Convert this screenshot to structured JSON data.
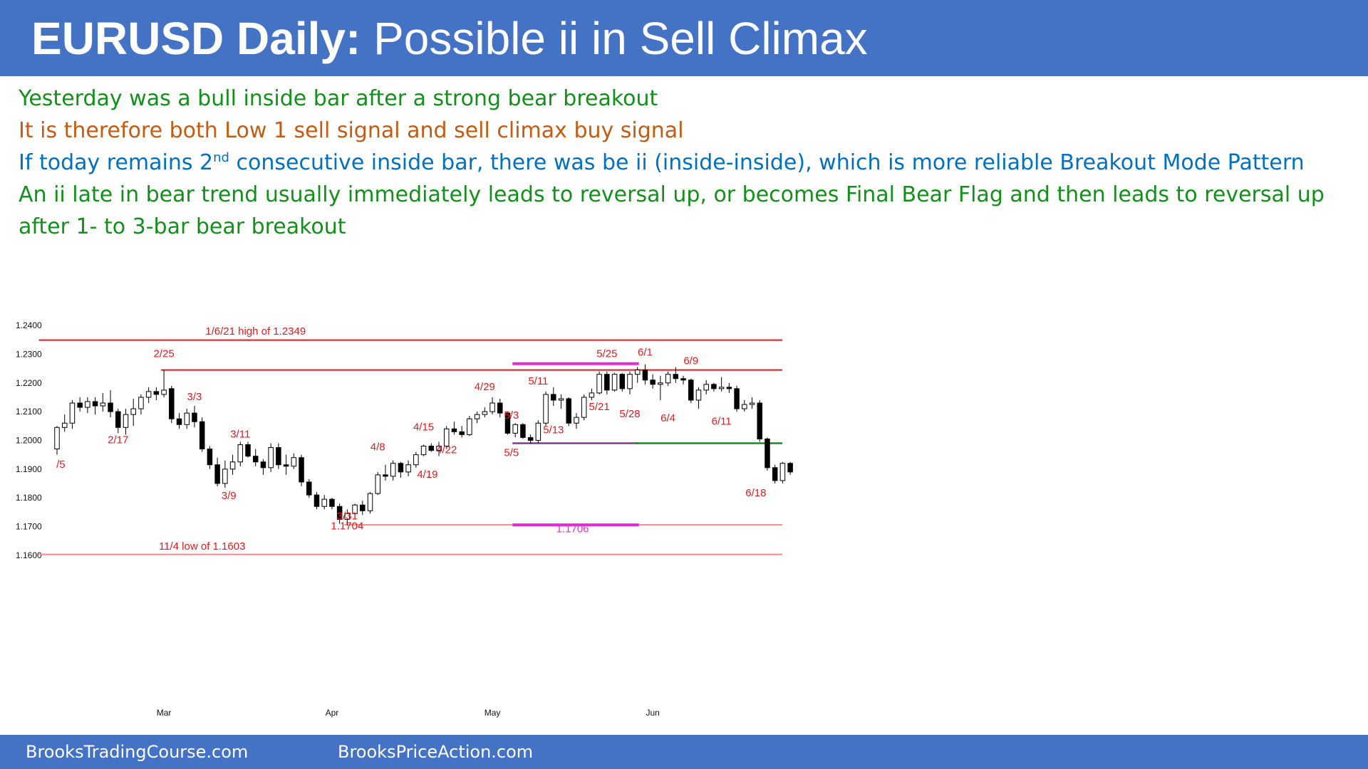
{
  "header": {
    "title_bold": "EURUSD Daily:",
    "title_rest": "Possible ii in Sell Climax"
  },
  "notes": [
    {
      "text": "Yesterday was a bull inside bar after a strong bear breakout",
      "color": "#12901a"
    },
    {
      "text": "It is therefore both Low 1 sell signal and sell climax buy signal",
      "color": "#c55a11"
    },
    {
      "text_before": "If today remains 2",
      "sup": "nd",
      "text_after": " consecutive inside bar, there was be ii (inside-inside), which is more reliable Breakout Mode Pattern",
      "color": "#0070c0"
    },
    {
      "text": "An ii late in bear trend usually immediately leads to reversal up, or becomes Final Bear Flag and then leads to reversal up after  1- to 3-bar bear breakout",
      "color": "#12901a"
    }
  ],
  "footer": {
    "left_link": "BrooksTradingCourse.com",
    "right_link": "BrooksPriceAction.com"
  },
  "chart_data": {
    "type": "candlestick",
    "title": "",
    "xlabel": "",
    "ylabel": "",
    "ylim": [
      1.155,
      1.2425
    ],
    "y_ticks": [
      "1.1600",
      "1.1700",
      "1.1800",
      "1.1900",
      "1.2000",
      "1.2100",
      "1.2200",
      "1.2300",
      "1.2400"
    ],
    "x_months": [
      {
        "label": "Mar",
        "index": 14
      },
      {
        "label": "Apr",
        "index": 36
      },
      {
        "label": "May",
        "index": 57
      },
      {
        "label": "Jun",
        "index": 78
      }
    ],
    "candles": [
      {
        "o": 1.197,
        "h": 1.205,
        "l": 1.195,
        "c": 1.2045
      },
      {
        "o": 1.2045,
        "h": 1.209,
        "l": 1.203,
        "c": 1.206
      },
      {
        "o": 1.206,
        "h": 1.214,
        "l": 1.204,
        "c": 1.213
      },
      {
        "o": 1.213,
        "h": 1.215,
        "l": 1.21,
        "c": 1.2115
      },
      {
        "o": 1.2115,
        "h": 1.215,
        "l": 1.2095,
        "c": 1.2135
      },
      {
        "o": 1.2135,
        "h": 1.215,
        "l": 1.209,
        "c": 1.212
      },
      {
        "o": 1.212,
        "h": 1.2165,
        "l": 1.21,
        "c": 1.213
      },
      {
        "o": 1.213,
        "h": 1.2175,
        "l": 1.208,
        "c": 1.21
      },
      {
        "o": 1.21,
        "h": 1.211,
        "l": 1.2025,
        "c": 1.2045
      },
      {
        "o": 1.2045,
        "h": 1.211,
        "l": 1.202,
        "c": 1.209
      },
      {
        "o": 1.209,
        "h": 1.2145,
        "l": 1.205,
        "c": 1.211
      },
      {
        "o": 1.211,
        "h": 1.216,
        "l": 1.209,
        "c": 1.215
      },
      {
        "o": 1.215,
        "h": 1.2185,
        "l": 1.213,
        "c": 1.217
      },
      {
        "o": 1.217,
        "h": 1.2185,
        "l": 1.214,
        "c": 1.216
      },
      {
        "o": 1.216,
        "h": 1.2245,
        "l": 1.215,
        "c": 1.2175
      },
      {
        "o": 1.218,
        "h": 1.219,
        "l": 1.206,
        "c": 1.2075
      },
      {
        "o": 1.2075,
        "h": 1.2095,
        "l": 1.204,
        "c": 1.2055
      },
      {
        "o": 1.2055,
        "h": 1.211,
        "l": 1.204,
        "c": 1.2095
      },
      {
        "o": 1.2095,
        "h": 1.212,
        "l": 1.2045,
        "c": 1.2065
      },
      {
        "o": 1.2065,
        "h": 1.208,
        "l": 1.196,
        "c": 1.197
      },
      {
        "o": 1.197,
        "h": 1.198,
        "l": 1.19,
        "c": 1.1915
      },
      {
        "o": 1.1915,
        "h": 1.194,
        "l": 1.184,
        "c": 1.185
      },
      {
        "o": 1.185,
        "h": 1.193,
        "l": 1.1835,
        "c": 1.19
      },
      {
        "o": 1.19,
        "h": 1.195,
        "l": 1.188,
        "c": 1.1925
      },
      {
        "o": 1.1925,
        "h": 1.1995,
        "l": 1.191,
        "c": 1.1985
      },
      {
        "o": 1.1985,
        "h": 1.1995,
        "l": 1.194,
        "c": 1.1945
      },
      {
        "o": 1.1945,
        "h": 1.197,
        "l": 1.191,
        "c": 1.1925
      },
      {
        "o": 1.1925,
        "h": 1.1935,
        "l": 1.188,
        "c": 1.1905
      },
      {
        "o": 1.1905,
        "h": 1.199,
        "l": 1.189,
        "c": 1.1975
      },
      {
        "o": 1.1975,
        "h": 1.199,
        "l": 1.19,
        "c": 1.1915
      },
      {
        "o": 1.1915,
        "h": 1.195,
        "l": 1.188,
        "c": 1.191
      },
      {
        "o": 1.191,
        "h": 1.1955,
        "l": 1.19,
        "c": 1.194
      },
      {
        "o": 1.194,
        "h": 1.195,
        "l": 1.184,
        "c": 1.1855
      },
      {
        "o": 1.1855,
        "h": 1.1865,
        "l": 1.18,
        "c": 1.181
      },
      {
        "o": 1.181,
        "h": 1.182,
        "l": 1.176,
        "c": 1.177
      },
      {
        "o": 1.177,
        "h": 1.181,
        "l": 1.176,
        "c": 1.1795
      },
      {
        "o": 1.1795,
        "h": 1.18,
        "l": 1.176,
        "c": 1.177
      },
      {
        "o": 1.177,
        "h": 1.178,
        "l": 1.171,
        "c": 1.1725
      },
      {
        "o": 1.1725,
        "h": 1.176,
        "l": 1.1704,
        "c": 1.1745
      },
      {
        "o": 1.1745,
        "h": 1.178,
        "l": 1.173,
        "c": 1.1775
      },
      {
        "o": 1.1775,
        "h": 1.179,
        "l": 1.174,
        "c": 1.1755
      },
      {
        "o": 1.1755,
        "h": 1.182,
        "l": 1.1745,
        "c": 1.1815
      },
      {
        "o": 1.1815,
        "h": 1.189,
        "l": 1.181,
        "c": 1.188
      },
      {
        "o": 1.188,
        "h": 1.1915,
        "l": 1.186,
        "c": 1.1875
      },
      {
        "o": 1.1875,
        "h": 1.193,
        "l": 1.186,
        "c": 1.192
      },
      {
        "o": 1.192,
        "h": 1.1925,
        "l": 1.187,
        "c": 1.189
      },
      {
        "o": 1.189,
        "h": 1.193,
        "l": 1.1875,
        "c": 1.1915
      },
      {
        "o": 1.1915,
        "h": 1.196,
        "l": 1.1905,
        "c": 1.195
      },
      {
        "o": 1.195,
        "h": 1.1985,
        "l": 1.1945,
        "c": 1.198
      },
      {
        "o": 1.198,
        "h": 1.199,
        "l": 1.196,
        "c": 1.1965
      },
      {
        "o": 1.1965,
        "h": 1.1995,
        "l": 1.1945,
        "c": 1.198
      },
      {
        "o": 1.198,
        "h": 1.205,
        "l": 1.197,
        "c": 1.204
      },
      {
        "o": 1.204,
        "h": 1.2065,
        "l": 1.202,
        "c": 1.203
      },
      {
        "o": 1.203,
        "h": 1.205,
        "l": 1.201,
        "c": 1.202
      },
      {
        "o": 1.202,
        "h": 1.2085,
        "l": 1.2015,
        "c": 1.2075
      },
      {
        "o": 1.2075,
        "h": 1.21,
        "l": 1.206,
        "c": 1.209
      },
      {
        "o": 1.209,
        "h": 1.2115,
        "l": 1.208,
        "c": 1.21
      },
      {
        "o": 1.21,
        "h": 1.215,
        "l": 1.209,
        "c": 1.213
      },
      {
        "o": 1.213,
        "h": 1.2145,
        "l": 1.208,
        "c": 1.2095
      },
      {
        "o": 1.2095,
        "h": 1.21,
        "l": 1.202,
        "c": 1.2025
      },
      {
        "o": 1.2025,
        "h": 1.206,
        "l": 1.201,
        "c": 1.2055
      },
      {
        "o": 1.2055,
        "h": 1.206,
        "l": 1.2005,
        "c": 1.201
      },
      {
        "o": 1.201,
        "h": 1.202,
        "l": 1.199,
        "c": 1.2
      },
      {
        "o": 1.2,
        "h": 1.207,
        "l": 1.199,
        "c": 1.206
      },
      {
        "o": 1.206,
        "h": 1.217,
        "l": 1.205,
        "c": 1.216
      },
      {
        "o": 1.216,
        "h": 1.2185,
        "l": 1.212,
        "c": 1.214
      },
      {
        "o": 1.214,
        "h": 1.216,
        "l": 1.211,
        "c": 1.2145
      },
      {
        "o": 1.2145,
        "h": 1.215,
        "l": 1.205,
        "c": 1.206
      },
      {
        "o": 1.206,
        "h": 1.2095,
        "l": 1.204,
        "c": 1.208
      },
      {
        "o": 1.208,
        "h": 1.216,
        "l": 1.207,
        "c": 1.215
      },
      {
        "o": 1.215,
        "h": 1.218,
        "l": 1.214,
        "c": 1.2165
      },
      {
        "o": 1.2165,
        "h": 1.224,
        "l": 1.216,
        "c": 1.223
      },
      {
        "o": 1.223,
        "h": 1.224,
        "l": 1.216,
        "c": 1.2175
      },
      {
        "o": 1.2175,
        "h": 1.2235,
        "l": 1.217,
        "c": 1.223
      },
      {
        "o": 1.223,
        "h": 1.2235,
        "l": 1.217,
        "c": 1.218
      },
      {
        "o": 1.218,
        "h": 1.224,
        "l": 1.216,
        "c": 1.223
      },
      {
        "o": 1.223,
        "h": 1.2255,
        "l": 1.22,
        "c": 1.2245
      },
      {
        "o": 1.2245,
        "h": 1.2265,
        "l": 1.2195,
        "c": 1.221
      },
      {
        "o": 1.221,
        "h": 1.223,
        "l": 1.218,
        "c": 1.2195
      },
      {
        "o": 1.2195,
        "h": 1.2225,
        "l": 1.214,
        "c": 1.22
      },
      {
        "o": 1.22,
        "h": 1.224,
        "l": 1.219,
        "c": 1.223
      },
      {
        "o": 1.223,
        "h": 1.2255,
        "l": 1.22,
        "c": 1.2215
      },
      {
        "o": 1.2215,
        "h": 1.2225,
        "l": 1.2195,
        "c": 1.221
      },
      {
        "o": 1.221,
        "h": 1.2215,
        "l": 1.213,
        "c": 1.214
      },
      {
        "o": 1.214,
        "h": 1.2185,
        "l": 1.211,
        "c": 1.2175
      },
      {
        "o": 1.2175,
        "h": 1.221,
        "l": 1.216,
        "c": 1.2195
      },
      {
        "o": 1.2195,
        "h": 1.22,
        "l": 1.217,
        "c": 1.218
      },
      {
        "o": 1.218,
        "h": 1.222,
        "l": 1.217,
        "c": 1.2185
      },
      {
        "o": 1.2185,
        "h": 1.22,
        "l": 1.2165,
        "c": 1.218
      },
      {
        "o": 1.218,
        "h": 1.219,
        "l": 1.21,
        "c": 1.211
      },
      {
        "o": 1.211,
        "h": 1.214,
        "l": 1.21,
        "c": 1.2125
      },
      {
        "o": 1.2125,
        "h": 1.215,
        "l": 1.211,
        "c": 1.213
      },
      {
        "o": 1.213,
        "h": 1.214,
        "l": 1.1995,
        "c": 1.2005
      },
      {
        "o": 1.2005,
        "h": 1.201,
        "l": 1.1895,
        "c": 1.1905
      },
      {
        "o": 1.1905,
        "h": 1.1915,
        "l": 1.185,
        "c": 1.186
      },
      {
        "o": 1.186,
        "h": 1.1925,
        "l": 1.185,
        "c": 1.192
      },
      {
        "o": 1.192,
        "h": 1.1925,
        "l": 1.188,
        "c": 1.189
      }
    ],
    "h_lines": [
      {
        "y": 1.2349,
        "color": "#e8171c",
        "from_index": -2,
        "to_index": 99
      },
      {
        "y": 1.2245,
        "color": "#e8171c",
        "from_index": 14,
        "to_index": 99
      },
      {
        "y": 1.1603,
        "color": "#f08a8f",
        "from_index": -2,
        "to_index": 99
      },
      {
        "y": 1.1706,
        "color": "#f08a8f",
        "from_index": 38,
        "to_index": 99
      },
      {
        "y": 1.2267,
        "color": "#e629d6",
        "from_index": 60,
        "to_index": 76
      },
      {
        "y": 1.1706,
        "color": "#e629d6",
        "from_index": 60,
        "to_index": 76
      },
      {
        "y": 1.199,
        "color": "#7d3c8c",
        "from_index": 60,
        "to_index": 76
      },
      {
        "y": 1.199,
        "color": "#12901a",
        "from_index": 76,
        "to_index": 95
      }
    ],
    "annotations": [
      {
        "text": "1/6/21 high of 1.2349",
        "x": 26,
        "y": 1.2368,
        "color": "#e8171c"
      },
      {
        "text": "2/25",
        "x": 14,
        "y": 1.229,
        "color": "#e8171c"
      },
      {
        "text": "3/3",
        "x": 18,
        "y": 1.214,
        "color": "#e8171c"
      },
      {
        "text": "/5",
        "x": 0.5,
        "y": 1.1905,
        "color": "#e8171c"
      },
      {
        "text": "2/17",
        "x": 8,
        "y": 1.199,
        "color": "#e8171c"
      },
      {
        "text": "3/11",
        "x": 24,
        "y": 1.201,
        "color": "#e8171c"
      },
      {
        "text": "3/9",
        "x": 22.5,
        "y": 1.1795,
        "color": "#e8171c"
      },
      {
        "text": "3/31",
        "x": 38,
        "y": 1.1725,
        "color": "#e8171c"
      },
      {
        "text": "1.1704",
        "x": 38,
        "y": 1.169,
        "color": "#e8171c"
      },
      {
        "text": "11/4 low of 1.1603",
        "x": 19,
        "y": 1.162,
        "color": "#e8171c"
      },
      {
        "text": "4/8",
        "x": 42,
        "y": 1.1965,
        "color": "#e8171c"
      },
      {
        "text": "4/15",
        "x": 48,
        "y": 1.2035,
        "color": "#e8171c"
      },
      {
        "text": "4/22",
        "x": 51,
        "y": 1.1955,
        "color": "#e8171c"
      },
      {
        "text": "4/19",
        "x": 48.5,
        "y": 1.187,
        "color": "#e8171c"
      },
      {
        "text": "4/29",
        "x": 56,
        "y": 1.2175,
        "color": "#e8171c"
      },
      {
        "text": "5/3",
        "x": 59.5,
        "y": 1.2075,
        "color": "#e8171c"
      },
      {
        "text": "5/5",
        "x": 59.5,
        "y": 1.1945,
        "color": "#e8171c"
      },
      {
        "text": "5/13",
        "x": 65,
        "y": 1.2025,
        "color": "#e8171c"
      },
      {
        "text": "5/11",
        "x": 63,
        "y": 1.2195,
        "color": "#e8171c"
      },
      {
        "text": "5/21",
        "x": 71,
        "y": 1.2105,
        "color": "#e8171c"
      },
      {
        "text": "5/25",
        "x": 72,
        "y": 1.229,
        "color": "#e8171c"
      },
      {
        "text": "5/28",
        "x": 75,
        "y": 1.208,
        "color": "#e8171c"
      },
      {
        "text": "6/1",
        "x": 77,
        "y": 1.2295,
        "color": "#e8171c"
      },
      {
        "text": "6/4",
        "x": 80,
        "y": 1.2065,
        "color": "#e8171c"
      },
      {
        "text": "6/9",
        "x": 83,
        "y": 1.2265,
        "color": "#e8171c"
      },
      {
        "text": "6/11",
        "x": 87,
        "y": 1.2055,
        "color": "#e8171c"
      },
      {
        "text": "6/18",
        "x": 91.5,
        "y": 1.1805,
        "color": "#e8171c"
      },
      {
        "text": "1.1706",
        "x": 67.5,
        "y": 1.168,
        "color": "#e629d6"
      }
    ]
  }
}
